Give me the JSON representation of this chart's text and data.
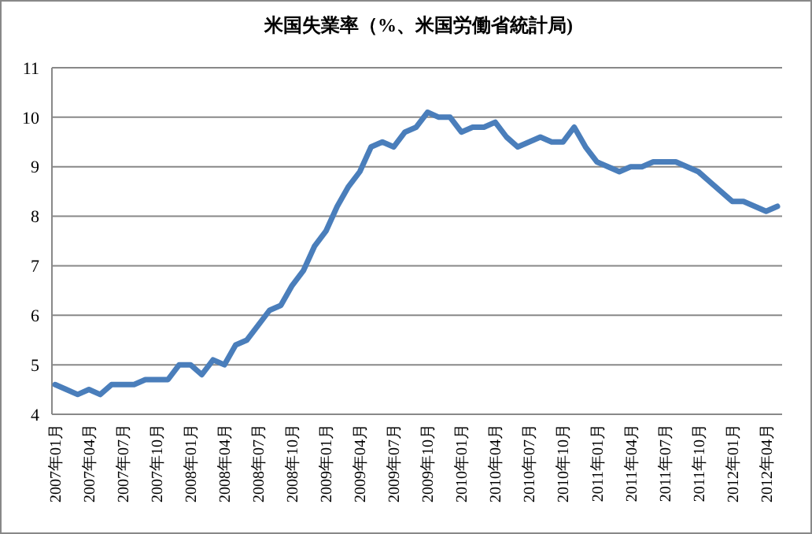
{
  "chart_data": {
    "type": "line",
    "title": "米国失業率（%、米国労働省統計局)",
    "categories": [
      "2007年01月",
      null,
      null,
      "2007年04月",
      null,
      null,
      "2007年07月",
      null,
      null,
      "2007年10月",
      null,
      null,
      "2008年01月",
      null,
      null,
      "2008年04月",
      null,
      null,
      "2008年07月",
      null,
      null,
      "2008年10月",
      null,
      null,
      "2009年01月",
      null,
      null,
      "2009年04月",
      null,
      null,
      "2009年07月",
      null,
      null,
      "2009年10月",
      null,
      null,
      "2010年01月",
      null,
      null,
      "2010年04月",
      null,
      null,
      "2010年07月",
      null,
      null,
      "2010年10月",
      null,
      null,
      "2011年01月",
      null,
      null,
      "2011年04月",
      null,
      null,
      "2011年07月",
      null,
      null,
      "2011年10月",
      null,
      null,
      "2012年01月",
      null,
      null,
      "2012年04月",
      null
    ],
    "series": [
      {
        "color": "#4a7ebb",
        "values": [
          4.6,
          4.5,
          4.4,
          4.5,
          4.4,
          4.6,
          4.6,
          4.6,
          4.7,
          4.7,
          4.7,
          5.0,
          5.0,
          4.8,
          5.1,
          5.0,
          5.4,
          5.5,
          5.8,
          6.1,
          6.2,
          6.6,
          6.9,
          7.4,
          7.7,
          8.2,
          8.6,
          8.9,
          9.4,
          9.5,
          9.4,
          9.7,
          9.8,
          10.1,
          10.0,
          10.0,
          9.7,
          9.8,
          9.8,
          9.9,
          9.6,
          9.4,
          9.5,
          9.6,
          9.5,
          9.5,
          9.8,
          9.4,
          9.1,
          9.0,
          8.9,
          9.0,
          9.0,
          9.1,
          9.1,
          9.1,
          9.0,
          8.9,
          8.7,
          8.5,
          8.3,
          8.3,
          8.2,
          8.1,
          8.2
        ]
      }
    ],
    "ylim": [
      4,
      11
    ],
    "yticks": [
      4,
      5,
      6,
      7,
      8,
      9,
      10,
      11
    ],
    "grid": "y",
    "marker": "none",
    "line_style": "solid"
  }
}
